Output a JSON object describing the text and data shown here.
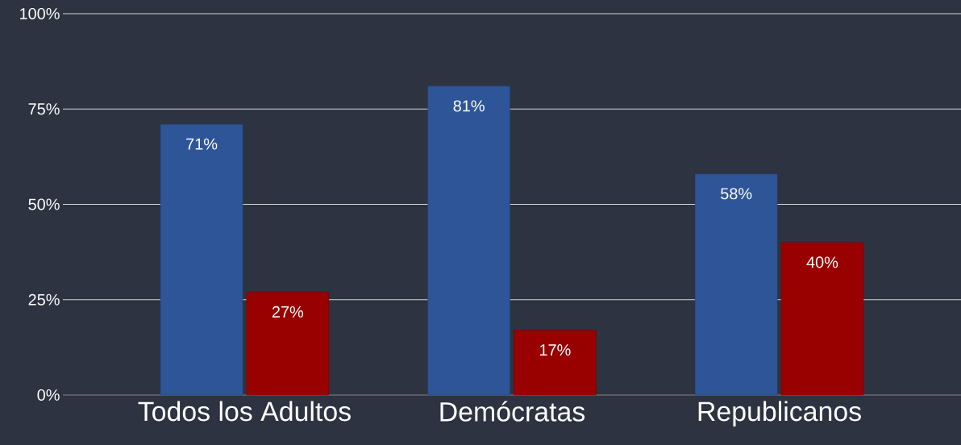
{
  "chart_data": {
    "type": "bar",
    "categories": [
      "Todos los Adultos",
      "Demócratas",
      "Republicanos"
    ],
    "series": [
      {
        "color": "#2e5597",
        "values": [
          71,
          81,
          58
        ],
        "value_labels": [
          "71%",
          "81%",
          "58%"
        ]
      },
      {
        "color": "#990000",
        "values": [
          27,
          17,
          40
        ],
        "value_labels": [
          "27%",
          "17%",
          "40%"
        ]
      }
    ],
    "ylim": [
      0,
      100
    ],
    "yticks": [
      {
        "value": 0,
        "label": "0%"
      },
      {
        "value": 25,
        "label": "25%"
      },
      {
        "value": 50,
        "label": "50%"
      },
      {
        "value": 75,
        "label": "75%"
      },
      {
        "value": 100,
        "label": "100%"
      }
    ],
    "grid": "y"
  }
}
